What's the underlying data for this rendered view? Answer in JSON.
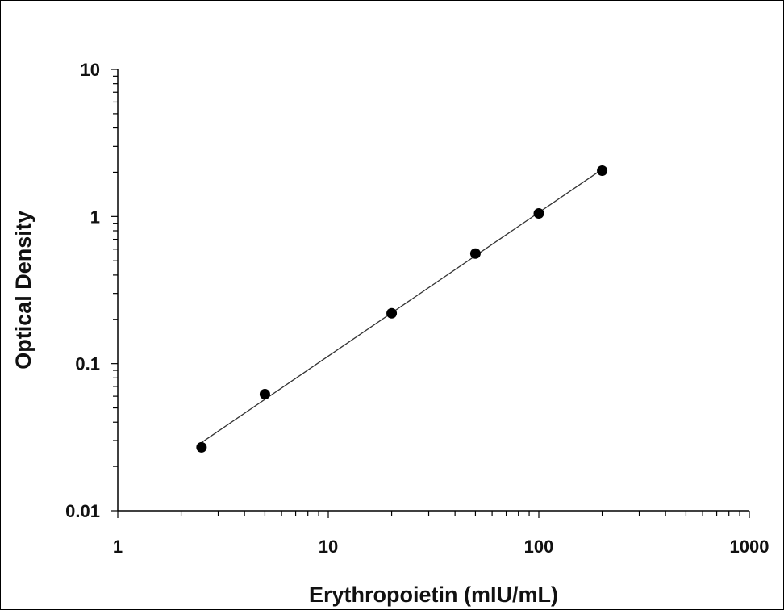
{
  "chart_data": {
    "type": "scatter",
    "title": "",
    "xlabel": "Erythropoietin (mIU/mL)",
    "ylabel": "Optical Density",
    "xscale": "log",
    "yscale": "log",
    "xlim": [
      1,
      1000
    ],
    "ylim": [
      0.01,
      10
    ],
    "x_ticks": [
      1,
      10,
      100,
      1000
    ],
    "x_tick_labels": [
      "1",
      "10",
      "100",
      "1000"
    ],
    "y_ticks": [
      0.01,
      0.1,
      1,
      10
    ],
    "y_tick_labels": [
      "0.01",
      "0.1",
      "1",
      "10"
    ],
    "grid": false,
    "legend": "none",
    "series": [
      {
        "x": [
          2.5,
          5,
          20,
          50,
          100,
          200
        ],
        "y": [
          0.027,
          0.062,
          0.22,
          0.56,
          1.05,
          2.05
        ],
        "marker_color": "#000000",
        "fit_line": true,
        "line_color": "#333333"
      }
    ]
  }
}
